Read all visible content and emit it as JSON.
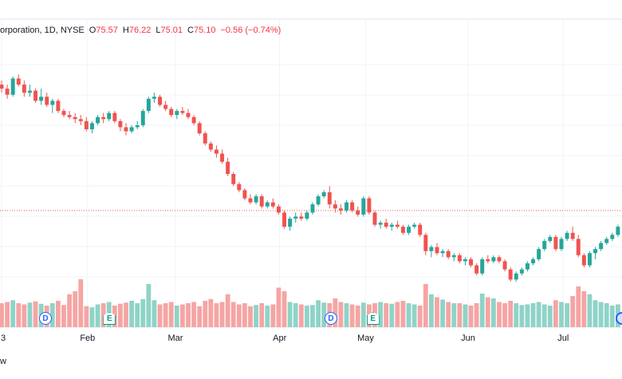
{
  "legend": {
    "title": "orporation, 1D, NYSE",
    "open_key": "O",
    "open": "75.57",
    "high_key": "H",
    "high": "76.22",
    "low_key": "L",
    "low": "75.01",
    "close_key": "C",
    "close": "75.10",
    "change": "−0.56 (−0.74%)"
  },
  "bottom_text": "w",
  "colors": {
    "up": "#26a69a",
    "down": "#ef5350",
    "grid": "#f0f3fa",
    "dotted": "#ef5350"
  },
  "events": [
    {
      "label": "D",
      "type": "dividend",
      "x_index": 24
    },
    {
      "label": "E",
      "type": "earnings",
      "x_index": 59
    },
    {
      "label": "D",
      "type": "dividend",
      "x_index": 180
    },
    {
      "label": "E",
      "type": "earnings",
      "x_index": 203
    },
    {
      "label": "",
      "type": "dividend-edge",
      "x_index": 339
    }
  ],
  "chart_data": {
    "type": "candlestick",
    "x_labels": [
      "3",
      "Feb",
      "Mar",
      "Apr",
      "May",
      "Jun",
      "Jul"
    ],
    "x_label_index": [
      0,
      47,
      95,
      152,
      199,
      255,
      307
    ],
    "last_close_line": 75.1,
    "price_range": [
      72.5,
      83.5
    ],
    "candles": [
      [
        81.3,
        81.5,
        80.9,
        81.1
      ],
      [
        81.1,
        81.3,
        80.6,
        80.8
      ],
      [
        80.8,
        81.7,
        80.7,
        81.6
      ],
      [
        81.6,
        81.8,
        81.2,
        81.3
      ],
      [
        81.3,
        81.5,
        80.7,
        80.9
      ],
      [
        80.9,
        81.3,
        80.7,
        81.0
      ],
      [
        81.0,
        81.1,
        80.4,
        80.5
      ],
      [
        80.5,
        81.1,
        80.3,
        80.7
      ],
      [
        80.7,
        80.9,
        80.2,
        80.3
      ],
      [
        80.3,
        80.6,
        79.9,
        80.5
      ],
      [
        80.5,
        80.6,
        79.9,
        80.0
      ],
      [
        80.0,
        80.1,
        79.7,
        79.8
      ],
      [
        79.8,
        80.0,
        79.6,
        79.7
      ],
      [
        79.7,
        79.9,
        79.4,
        79.6
      ],
      [
        79.6,
        79.8,
        79.3,
        79.5
      ],
      [
        79.5,
        79.7,
        79.0,
        79.1
      ],
      [
        79.1,
        79.5,
        78.9,
        79.4
      ],
      [
        79.4,
        79.8,
        79.3,
        79.7
      ],
      [
        79.7,
        79.9,
        79.4,
        79.6
      ],
      [
        79.6,
        80.0,
        79.5,
        79.9
      ],
      [
        79.9,
        80.0,
        79.4,
        79.5
      ],
      [
        79.5,
        79.6,
        79.0,
        79.2
      ],
      [
        79.2,
        79.4,
        78.8,
        79.0
      ],
      [
        79.0,
        79.3,
        78.9,
        79.2
      ],
      [
        79.2,
        79.5,
        79.1,
        79.3
      ],
      [
        79.3,
        80.1,
        79.2,
        80.0
      ],
      [
        80.0,
        80.7,
        79.9,
        80.6
      ],
      [
        80.6,
        80.9,
        80.4,
        80.7
      ],
      [
        80.7,
        80.8,
        80.2,
        80.3
      ],
      [
        80.3,
        80.5,
        80.0,
        80.1
      ],
      [
        80.1,
        80.2,
        79.7,
        79.8
      ],
      [
        79.8,
        80.1,
        79.6,
        80.0
      ],
      [
        80.0,
        80.2,
        79.8,
        79.9
      ],
      [
        79.9,
        80.1,
        79.6,
        79.7
      ],
      [
        79.7,
        79.8,
        79.3,
        79.4
      ],
      [
        79.4,
        79.5,
        78.8,
        78.9
      ],
      [
        78.9,
        79.0,
        78.3,
        78.4
      ],
      [
        78.4,
        78.5,
        78.0,
        78.1
      ],
      [
        78.1,
        78.3,
        77.7,
        77.9
      ],
      [
        77.9,
        78.1,
        77.4,
        77.5
      ],
      [
        77.5,
        77.7,
        76.8,
        76.9
      ],
      [
        76.9,
        77.0,
        76.3,
        76.4
      ],
      [
        76.4,
        76.5,
        76.0,
        76.1
      ],
      [
        76.1,
        76.2,
        75.6,
        75.7
      ],
      [
        75.7,
        75.9,
        75.4,
        75.5
      ],
      [
        75.5,
        75.9,
        75.4,
        75.8
      ],
      [
        75.8,
        75.9,
        75.2,
        75.3
      ],
      [
        75.3,
        75.6,
        75.2,
        75.5
      ],
      [
        75.5,
        75.7,
        75.2,
        75.3
      ],
      [
        75.3,
        75.4,
        74.9,
        75.0
      ],
      [
        75.0,
        75.1,
        74.2,
        74.3
      ],
      [
        74.3,
        74.8,
        74.1,
        74.7
      ],
      [
        74.7,
        75.0,
        74.5,
        74.8
      ],
      [
        74.8,
        75.0,
        74.6,
        74.7
      ],
      [
        74.7,
        75.1,
        74.6,
        75.0
      ],
      [
        75.0,
        75.5,
        74.9,
        75.4
      ],
      [
        75.4,
        75.9,
        75.3,
        75.8
      ],
      [
        75.8,
        76.1,
        75.7,
        76.0
      ],
      [
        76.0,
        76.3,
        75.2,
        75.4
      ],
      [
        75.4,
        75.6,
        75.0,
        75.2
      ],
      [
        75.2,
        75.4,
        74.9,
        75.1
      ],
      [
        75.1,
        75.6,
        75.0,
        75.5
      ],
      [
        75.5,
        75.6,
        75.0,
        75.1
      ],
      [
        75.1,
        75.3,
        74.8,
        74.9
      ],
      [
        74.9,
        75.8,
        74.8,
        75.7
      ],
      [
        75.7,
        75.8,
        74.9,
        75.0
      ],
      [
        75.0,
        75.1,
        74.3,
        74.4
      ],
      [
        74.4,
        74.6,
        74.2,
        74.5
      ],
      [
        74.5,
        74.7,
        74.2,
        74.3
      ],
      [
        74.3,
        74.5,
        74.1,
        74.4
      ],
      [
        74.4,
        74.6,
        74.2,
        74.3
      ],
      [
        74.3,
        74.4,
        73.9,
        74.0
      ],
      [
        74.0,
        74.4,
        73.9,
        74.3
      ],
      [
        74.3,
        74.5,
        74.2,
        74.4
      ],
      [
        74.4,
        74.5,
        73.8,
        73.9
      ],
      [
        73.9,
        74.0,
        72.9,
        73.1
      ],
      [
        73.1,
        73.4,
        72.8,
        73.3
      ],
      [
        73.3,
        73.5,
        72.9,
        73.0
      ],
      [
        73.0,
        73.2,
        72.8,
        73.1
      ],
      [
        73.1,
        73.2,
        72.7,
        72.8
      ],
      [
        72.8,
        73.0,
        72.6,
        72.9
      ],
      [
        72.9,
        73.0,
        72.5,
        72.6
      ],
      [
        72.6,
        72.8,
        72.4,
        72.7
      ],
      [
        72.7,
        72.8,
        72.3,
        72.4
      ],
      [
        72.4,
        72.5,
        71.9,
        72.0
      ],
      [
        72.0,
        72.8,
        71.9,
        72.7
      ],
      [
        72.7,
        72.9,
        72.5,
        72.6
      ],
      [
        72.6,
        72.9,
        72.5,
        72.8
      ],
      [
        72.8,
        72.9,
        72.5,
        72.6
      ],
      [
        72.6,
        72.7,
        72.1,
        72.2
      ],
      [
        72.2,
        72.3,
        71.6,
        71.7
      ],
      [
        71.7,
        72.1,
        71.6,
        72.0
      ],
      [
        72.0,
        72.3,
        71.9,
        72.2
      ],
      [
        72.2,
        72.6,
        72.1,
        72.5
      ],
      [
        72.5,
        72.8,
        72.4,
        72.7
      ],
      [
        72.7,
        73.3,
        72.6,
        73.2
      ],
      [
        73.2,
        73.7,
        73.1,
        73.6
      ],
      [
        73.6,
        73.9,
        73.5,
        73.8
      ],
      [
        73.8,
        73.9,
        73.1,
        73.2
      ],
      [
        73.2,
        73.8,
        73.1,
        73.7
      ],
      [
        73.7,
        74.1,
        73.6,
        74.0
      ],
      [
        74.0,
        74.3,
        73.6,
        73.7
      ],
      [
        73.7,
        73.9,
        72.8,
        72.9
      ],
      [
        72.9,
        73.0,
        72.3,
        72.4
      ],
      [
        72.4,
        73.1,
        72.3,
        73.0
      ],
      [
        73.0,
        73.3,
        72.7,
        73.2
      ],
      [
        73.2,
        73.6,
        73.1,
        73.5
      ],
      [
        73.5,
        73.8,
        73.4,
        73.7
      ],
      [
        73.7,
        74.0,
        73.6,
        73.9
      ],
      [
        73.9,
        74.4,
        73.8,
        74.3
      ]
    ],
    "volume": [
      0.4,
      0.42,
      0.45,
      0.4,
      0.38,
      0.41,
      0.43,
      0.39,
      0.36,
      0.4,
      0.44,
      0.37,
      0.55,
      0.6,
      0.8,
      0.35,
      0.33,
      0.38,
      0.4,
      0.42,
      0.36,
      0.39,
      0.41,
      0.44,
      0.4,
      0.47,
      0.72,
      0.45,
      0.38,
      0.4,
      0.42,
      0.36,
      0.38,
      0.4,
      0.42,
      0.35,
      0.44,
      0.47,
      0.4,
      0.42,
      0.55,
      0.42,
      0.38,
      0.4,
      0.35,
      0.37,
      0.4,
      0.36,
      0.38,
      0.66,
      0.6,
      0.42,
      0.4,
      0.38,
      0.36,
      0.37,
      0.45,
      0.41,
      0.4,
      0.48,
      0.42,
      0.4,
      0.38,
      0.36,
      0.41,
      0.38,
      0.4,
      0.42,
      0.4,
      0.39,
      0.42,
      0.44,
      0.4,
      0.38,
      0.36,
      0.72,
      0.55,
      0.5,
      0.46,
      0.42,
      0.4,
      0.4,
      0.38,
      0.36,
      0.4,
      0.56,
      0.5,
      0.48,
      0.42,
      0.4,
      0.44,
      0.4,
      0.37,
      0.38,
      0.4,
      0.42,
      0.38,
      0.36,
      0.45,
      0.42,
      0.4,
      0.52,
      0.68,
      0.6,
      0.55,
      0.45,
      0.42,
      0.4,
      0.36,
      0.38
    ]
  }
}
